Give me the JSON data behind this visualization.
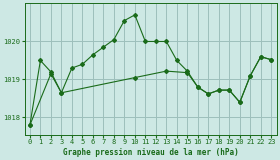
{
  "title": "Graphe pression niveau de la mer (hPa)",
  "bg_color": "#cde8e4",
  "grid_color": "#9dbfbb",
  "line_color": "#1a6b1a",
  "xlim": [
    -0.5,
    23.5
  ],
  "ylim": [
    1017.55,
    1021.0
  ],
  "yticks": [
    1018,
    1019,
    1020
  ],
  "xticks": [
    0,
    1,
    2,
    3,
    4,
    5,
    6,
    7,
    8,
    9,
    10,
    11,
    12,
    13,
    14,
    15,
    16,
    17,
    18,
    19,
    20,
    21,
    22,
    23
  ],
  "line1_x": [
    0,
    1,
    2,
    3,
    4,
    5,
    6,
    7,
    8,
    9,
    10,
    11,
    12,
    13,
    14,
    15,
    16,
    17,
    18,
    19,
    20,
    21,
    22,
    23
  ],
  "line1_y": [
    1017.8,
    1019.5,
    1019.2,
    1018.65,
    1019.3,
    1019.4,
    1019.65,
    1019.85,
    1020.05,
    1020.55,
    1020.7,
    1020.0,
    1020.0,
    1020.0,
    1019.5,
    1019.22,
    1018.8,
    1018.62,
    1018.72,
    1018.72,
    1018.4,
    1019.1,
    1019.6,
    1019.52
  ],
  "line2_x": [
    0,
    2,
    3,
    10,
    13,
    15,
    16,
    17,
    18,
    19,
    20,
    21,
    22,
    23
  ],
  "line2_y": [
    1017.8,
    1019.15,
    1018.65,
    1019.05,
    1019.22,
    1019.18,
    1018.8,
    1018.62,
    1018.72,
    1018.72,
    1018.4,
    1019.1,
    1019.6,
    1019.52
  ]
}
